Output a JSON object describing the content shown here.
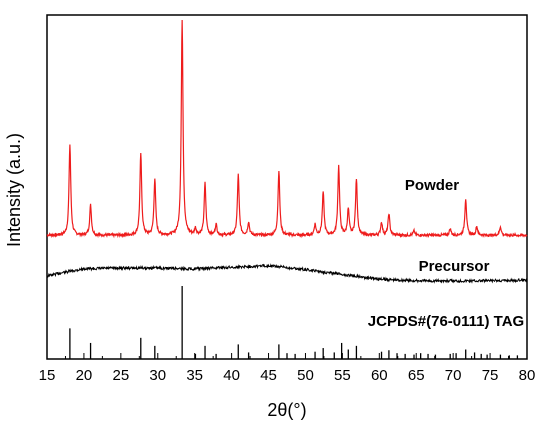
{
  "chart_data": {
    "type": "line",
    "xlabel": "2θ(°)",
    "ylabel": "Intensity (a.u.)",
    "xlim": [
      15,
      80
    ],
    "x_ticks": [
      15,
      20,
      25,
      30,
      35,
      40,
      45,
      50,
      55,
      60,
      65,
      70,
      75,
      80
    ],
    "x_tick_labels": [
      "15",
      "20",
      "25",
      "30",
      "35",
      "40",
      "45",
      "50",
      "55",
      "60",
      "65",
      "70",
      "75",
      "80"
    ],
    "y_ticks_visible": false,
    "grid": false,
    "colors": {
      "powder": "#ee1c1c",
      "precursor": "#000000",
      "reference": "#000000"
    },
    "series": [
      {
        "name": "Powder",
        "baseline": 0.02,
        "peaks": [
          {
            "x": 18.1,
            "y": 0.42
          },
          {
            "x": 20.9,
            "y": 0.14
          },
          {
            "x": 27.7,
            "y": 0.38
          },
          {
            "x": 29.6,
            "y": 0.26
          },
          {
            "x": 33.3,
            "y": 1.0
          },
          {
            "x": 35.1,
            "y": 0.03
          },
          {
            "x": 36.4,
            "y": 0.24
          },
          {
            "x": 37.9,
            "y": 0.05
          },
          {
            "x": 40.9,
            "y": 0.28
          },
          {
            "x": 42.3,
            "y": 0.06
          },
          {
            "x": 46.4,
            "y": 0.3
          },
          {
            "x": 51.3,
            "y": 0.05
          },
          {
            "x": 52.4,
            "y": 0.2
          },
          {
            "x": 54.5,
            "y": 0.32
          },
          {
            "x": 55.8,
            "y": 0.12
          },
          {
            "x": 56.9,
            "y": 0.26
          },
          {
            "x": 60.3,
            "y": 0.06
          },
          {
            "x": 61.3,
            "y": 0.1
          },
          {
            "x": 64.7,
            "y": 0.02
          },
          {
            "x": 69.6,
            "y": 0.03
          },
          {
            "x": 71.7,
            "y": 0.17
          },
          {
            "x": 73.2,
            "y": 0.04
          },
          {
            "x": 76.4,
            "y": 0.04
          }
        ]
      },
      {
        "name": "Precursor",
        "description": "broad amorphous hump, no sharp peaks",
        "x": [
          15,
          17,
          20,
          25,
          30,
          35,
          40,
          45,
          50,
          55,
          60,
          65,
          70,
          75,
          80
        ],
        "y": [
          0.2,
          0.16,
          0.11,
          0.1,
          0.1,
          0.11,
          0.09,
          0.07,
          0.12,
          0.18,
          0.24,
          0.26,
          0.26,
          0.26,
          0.25
        ]
      },
      {
        "name": "JCPDS#(76-0111) TAG",
        "type": "stick",
        "x": [
          18.1,
          20.9,
          27.7,
          29.6,
          33.3,
          35.1,
          36.4,
          37.9,
          40.9,
          42.3,
          46.4,
          47.5,
          48.6,
          51.3,
          52.4,
          53.9,
          54.9,
          55.8,
          56.9,
          60.3,
          61.3,
          62.4,
          63.5,
          64.7,
          65.6,
          66.6,
          67.6,
          69.6,
          70.4,
          71.7,
          72.9,
          73.8,
          74.6,
          76.4,
          77.6,
          78.7
        ],
        "y": [
          0.42,
          0.22,
          0.29,
          0.18,
          1.0,
          0.07,
          0.18,
          0.07,
          0.2,
          0.09,
          0.2,
          0.08,
          0.07,
          0.1,
          0.15,
          0.09,
          0.22,
          0.13,
          0.18,
          0.1,
          0.12,
          0.08,
          0.07,
          0.06,
          0.08,
          0.07,
          0.06,
          0.07,
          0.08,
          0.13,
          0.09,
          0.07,
          0.06,
          0.06,
          0.05,
          0.05
        ]
      }
    ],
    "annotations": {
      "powder": "Powder",
      "precursor": "Precursor",
      "reference": "JCPDS#(76-0111) TAG"
    }
  }
}
